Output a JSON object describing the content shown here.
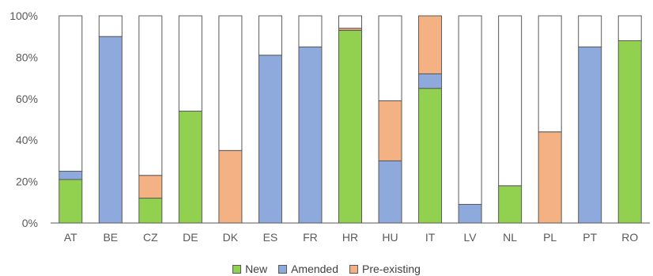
{
  "chart_data": {
    "type": "bar",
    "stacked": true,
    "title": "",
    "xlabel": "",
    "ylabel": "",
    "ylim": [
      0,
      100
    ],
    "y_ticks": [
      "0%",
      "20%",
      "40%",
      "60%",
      "80%",
      "100%"
    ],
    "grid": false,
    "legend_position": "bottom",
    "categories": [
      "AT",
      "BE",
      "CZ",
      "DE",
      "DK",
      "ES",
      "FR",
      "HR",
      "HU",
      "IT",
      "LV",
      "NL",
      "PL",
      "PT",
      "RO"
    ],
    "series": [
      {
        "name": "New",
        "color": "#92D050",
        "values": [
          21,
          0,
          12,
          54,
          0,
          0,
          0,
          93,
          0,
          65,
          0,
          18,
          0,
          0,
          88
        ]
      },
      {
        "name": "Amended",
        "color": "#8EA9DB",
        "values": [
          4,
          90,
          0,
          0,
          0,
          81,
          85,
          0,
          30,
          7,
          9,
          0,
          0,
          85,
          0
        ]
      },
      {
        "name": "Pre-existing",
        "color": "#F4B183",
        "values": [
          0,
          0,
          11,
          0,
          35,
          0,
          0,
          1,
          29,
          28,
          0,
          0,
          44,
          0,
          0
        ]
      }
    ],
    "remainder_color": "#FFFFFF"
  }
}
